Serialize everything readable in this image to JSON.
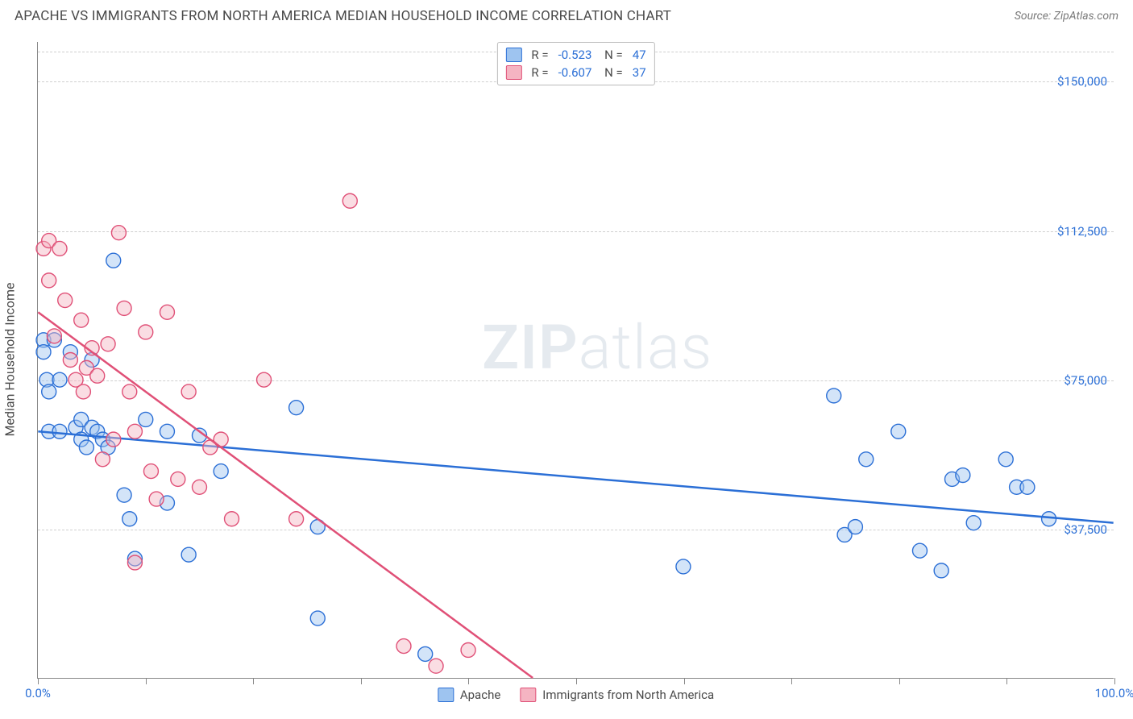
{
  "title": "APACHE VS IMMIGRANTS FROM NORTH AMERICA MEDIAN HOUSEHOLD INCOME CORRELATION CHART",
  "source_label": "Source:",
  "source_name": "ZipAtlas.com",
  "watermark": {
    "zip": "ZIP",
    "atlas": "atlas"
  },
  "ylabel": "Median Household Income",
  "chart": {
    "type": "scatter",
    "background_color": "#ffffff",
    "grid_color": "#cfcfcf",
    "axis_color": "#888888",
    "xlim": [
      0,
      100
    ],
    "ylim": [
      0,
      160000
    ],
    "xticks": [
      0,
      10,
      20,
      30,
      40,
      50,
      60,
      70,
      80,
      90,
      100
    ],
    "xtick_labels": {
      "0": "0.0%",
      "100": "100.0%"
    },
    "ytick_gridlines": [
      37500,
      75000,
      112500,
      150000
    ],
    "ytick_labels": [
      "$37,500",
      "$75,000",
      "$112,500",
      "$150,000"
    ],
    "marker_radius": 9,
    "marker_opacity": 0.45,
    "line_width": 2.5,
    "series": [
      {
        "name": "Apache",
        "fill": "#9ec4f0",
        "stroke": "#2b6fd6",
        "r_value": "-0.523",
        "n_value": "47",
        "regression": {
          "x1": 0,
          "y1": 62000,
          "x2": 100,
          "y2": 39000
        },
        "points": [
          [
            0.5,
            85000
          ],
          [
            0.5,
            82000
          ],
          [
            0.8,
            75000
          ],
          [
            1,
            62000
          ],
          [
            1,
            72000
          ],
          [
            1.5,
            85000
          ],
          [
            2,
            75000
          ],
          [
            2,
            62000
          ],
          [
            3,
            82000
          ],
          [
            3.5,
            63000
          ],
          [
            4,
            60000
          ],
          [
            4,
            65000
          ],
          [
            4.5,
            58000
          ],
          [
            5,
            63000
          ],
          [
            5,
            80000
          ],
          [
            5.5,
            62000
          ],
          [
            6,
            60000
          ],
          [
            6.5,
            58000
          ],
          [
            7,
            105000
          ],
          [
            8,
            46000
          ],
          [
            8.5,
            40000
          ],
          [
            9,
            30000
          ],
          [
            10,
            65000
          ],
          [
            12,
            44000
          ],
          [
            12,
            62000
          ],
          [
            14,
            31000
          ],
          [
            15,
            61000
          ],
          [
            17,
            52000
          ],
          [
            24,
            68000
          ],
          [
            26,
            15000
          ],
          [
            26,
            38000
          ],
          [
            36,
            6000
          ],
          [
            60,
            28000
          ],
          [
            74,
            71000
          ],
          [
            75,
            36000
          ],
          [
            76,
            38000
          ],
          [
            77,
            55000
          ],
          [
            80,
            62000
          ],
          [
            82,
            32000
          ],
          [
            84,
            27000
          ],
          [
            85,
            50000
          ],
          [
            86,
            51000
          ],
          [
            87,
            39000
          ],
          [
            90,
            55000
          ],
          [
            91,
            48000
          ],
          [
            92,
            48000
          ],
          [
            94,
            40000
          ]
        ]
      },
      {
        "name": "Immigrants from North America",
        "fill": "#f5b4c2",
        "stroke": "#e05077",
        "r_value": "-0.607",
        "n_value": "37",
        "regression": {
          "x1": 0,
          "y1": 92000,
          "x2": 46,
          "y2": 0
        },
        "points": [
          [
            0.5,
            108000
          ],
          [
            1,
            110000
          ],
          [
            1,
            100000
          ],
          [
            1.5,
            86000
          ],
          [
            2,
            108000
          ],
          [
            2.5,
            95000
          ],
          [
            3,
            80000
          ],
          [
            3.5,
            75000
          ],
          [
            4,
            90000
          ],
          [
            4.2,
            72000
          ],
          [
            4.5,
            78000
          ],
          [
            5,
            83000
          ],
          [
            5.5,
            76000
          ],
          [
            6,
            55000
          ],
          [
            6.5,
            84000
          ],
          [
            7,
            60000
          ],
          [
            7.5,
            112000
          ],
          [
            8,
            93000
          ],
          [
            8.5,
            72000
          ],
          [
            9,
            62000
          ],
          [
            9,
            29000
          ],
          [
            10,
            87000
          ],
          [
            10.5,
            52000
          ],
          [
            11,
            45000
          ],
          [
            12,
            92000
          ],
          [
            13,
            50000
          ],
          [
            14,
            72000
          ],
          [
            15,
            48000
          ],
          [
            16,
            58000
          ],
          [
            17,
            60000
          ],
          [
            18,
            40000
          ],
          [
            21,
            75000
          ],
          [
            24,
            40000
          ],
          [
            29,
            120000
          ],
          [
            34,
            8000
          ],
          [
            37,
            3000
          ],
          [
            40,
            7000
          ]
        ]
      }
    ]
  }
}
